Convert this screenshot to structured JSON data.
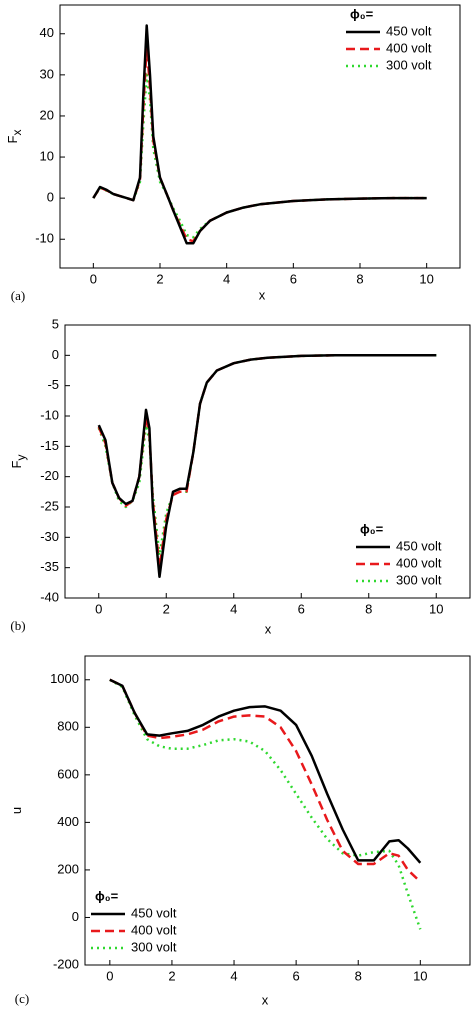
{
  "chart_data": [
    {
      "type": "line",
      "panel_label": "(a)",
      "x_label": "x",
      "y_label": "F",
      "y_label_sub": "x",
      "legend_title": "ϕ₀=",
      "legend": "top-right",
      "xlim": [
        -1,
        11
      ],
      "xticks": [
        0,
        2,
        4,
        6,
        8,
        10
      ],
      "ylim": [
        -17,
        47
      ],
      "yticks": [
        -10,
        0,
        10,
        20,
        30,
        40
      ],
      "x": [
        0,
        0.2,
        0.4,
        0.6,
        0.8,
        1.0,
        1.2,
        1.4,
        1.5,
        1.6,
        1.7,
        1.8,
        2.0,
        2.2,
        2.4,
        2.6,
        2.8,
        3.0,
        3.2,
        3.5,
        4,
        4.5,
        5,
        6,
        7,
        8,
        9,
        10
      ],
      "series": [
        {
          "name": "450 volt",
          "color": "#000000",
          "style": "solid",
          "values": [
            0,
            2.7,
            2,
            1,
            0.5,
            0,
            -0.5,
            5,
            25,
            42,
            30,
            15,
            5,
            1,
            -3,
            -7,
            -11,
            -11,
            -8,
            -5.5,
            -3.5,
            -2.3,
            -1.5,
            -0.7,
            -0.3,
            -0.1,
            0,
            0
          ]
        },
        {
          "name": "400 volt",
          "color": "#e8191c",
          "style": "dash",
          "values": [
            0,
            2.6,
            1.9,
            1,
            0.5,
            0,
            -0.5,
            4.5,
            22,
            37,
            27,
            14,
            5,
            1,
            -3,
            -6.5,
            -10,
            -10.5,
            -8,
            -5.5,
            -3.5,
            -2.3,
            -1.5,
            -0.7,
            -0.3,
            -0.1,
            0,
            0
          ]
        },
        {
          "name": "300 volt",
          "color": "#2fd82f",
          "style": "dot",
          "values": [
            0,
            2.5,
            1.8,
            1,
            0.5,
            0,
            -0.5,
            4,
            18,
            30,
            24,
            12,
            4,
            1,
            -2.5,
            -5.5,
            -9,
            -9.5,
            -7.5,
            -5.5,
            -3.5,
            -2.3,
            -1.5,
            -0.7,
            -0.3,
            -0.1,
            0,
            0
          ]
        }
      ]
    },
    {
      "type": "line",
      "panel_label": "(b)",
      "x_label": "x",
      "y_label": "F",
      "y_label_sub": "y",
      "legend_title": "ϕ₀=",
      "legend": "bottom-right",
      "xlim": [
        -1,
        11
      ],
      "xticks": [
        0,
        2,
        4,
        6,
        8,
        10
      ],
      "ylim": [
        -40,
        5
      ],
      "yticks": [
        -40,
        -35,
        -30,
        -25,
        -20,
        -15,
        -10,
        -5,
        0,
        5
      ],
      "x": [
        0,
        0.2,
        0.4,
        0.6,
        0.8,
        1.0,
        1.2,
        1.4,
        1.5,
        1.6,
        1.8,
        2.0,
        2.2,
        2.4,
        2.6,
        2.8,
        3.0,
        3.2,
        3.5,
        4,
        4.5,
        5,
        6,
        7,
        8,
        9,
        10
      ],
      "series": [
        {
          "name": "450 volt",
          "color": "#000000",
          "style": "solid",
          "values": [
            -11.5,
            -14,
            -21,
            -23.5,
            -24.5,
            -24,
            -20,
            -9,
            -12,
            -25,
            -36.5,
            -28,
            -22.5,
            -22,
            -22,
            -16,
            -8,
            -4.5,
            -2.5,
            -1.3,
            -0.7,
            -0.4,
            -0.1,
            0,
            0,
            0,
            0
          ]
        },
        {
          "name": "400 volt",
          "color": "#e8191c",
          "style": "dash",
          "values": [
            -11.8,
            -14.5,
            -21,
            -23.5,
            -24.8,
            -24,
            -20,
            -10,
            -13,
            -24,
            -35,
            -27,
            -23,
            -22.5,
            -22.5,
            -16,
            -8,
            -4.5,
            -2.5,
            -1.3,
            -0.7,
            -0.4,
            -0.1,
            0,
            0,
            0,
            0
          ]
        },
        {
          "name": "300 volt",
          "color": "#2fd82f",
          "style": "dot",
          "values": [
            -12,
            -15,
            -21,
            -24,
            -25,
            -24,
            -21,
            -11.5,
            -14,
            -23,
            -33,
            -26,
            -23,
            -22.5,
            -22.5,
            -16,
            -8,
            -4.5,
            -2.5,
            -1.3,
            -0.7,
            -0.4,
            -0.1,
            0,
            0,
            0,
            0
          ]
        }
      ]
    },
    {
      "type": "line",
      "panel_label": "(c)",
      "x_label": "x",
      "y_label": "u",
      "legend_title": "ϕ₀=",
      "legend": "bottom-left",
      "xlim": [
        -0.8,
        11.6
      ],
      "xticks": [
        0,
        2,
        4,
        6,
        8,
        10
      ],
      "ylim": [
        -200,
        1100
      ],
      "yticks": [
        -200,
        0,
        200,
        400,
        600,
        800,
        1000
      ],
      "x": [
        0,
        0.4,
        0.8,
        1.2,
        1.6,
        2,
        2.5,
        3,
        3.5,
        4,
        4.5,
        5,
        5.5,
        6,
        6.5,
        7,
        7.5,
        8,
        8.5,
        9,
        9.3,
        9.6,
        10
      ],
      "series": [
        {
          "name": "450 volt",
          "color": "#000000",
          "style": "solid",
          "values": [
            1000,
            975,
            860,
            770,
            765,
            775,
            785,
            810,
            845,
            870,
            885,
            888,
            870,
            810,
            680,
            520,
            370,
            240,
            240,
            320,
            325,
            290,
            230
          ]
        },
        {
          "name": "400 volt",
          "color": "#e8191c",
          "style": "dash",
          "values": [
            1000,
            975,
            860,
            765,
            755,
            760,
            770,
            790,
            825,
            845,
            850,
            845,
            800,
            700,
            560,
            410,
            280,
            225,
            225,
            270,
            260,
            200,
            150
          ]
        },
        {
          "name": "300 volt",
          "color": "#2fd82f",
          "style": "dot",
          "values": [
            1000,
            970,
            850,
            750,
            720,
            710,
            710,
            725,
            745,
            750,
            740,
            700,
            620,
            520,
            420,
            330,
            270,
            260,
            275,
            280,
            220,
            100,
            -50
          ]
        }
      ]
    }
  ]
}
